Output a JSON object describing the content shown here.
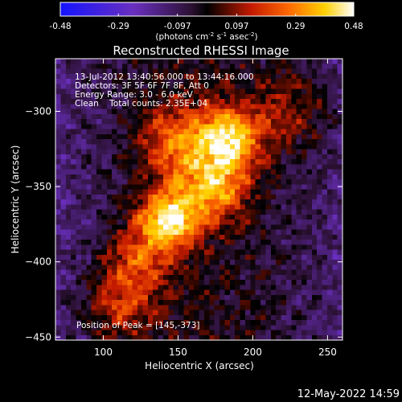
{
  "colorbar": {
    "tick_labels": [
      "-0.48",
      "-0.29",
      "-0.097",
      "0.097",
      "0.29",
      "0.48"
    ],
    "ticks": [
      -0.48,
      -0.29,
      -0.097,
      0.097,
      0.29,
      0.48
    ],
    "range": [
      -0.48,
      0.48
    ],
    "unit_prefix": "(photons cm",
    "unit_exp1": "-2",
    "unit_mid": " s",
    "unit_exp2": "-1",
    "unit_mid2": " asec",
    "unit_exp3": "-2",
    "unit_suffix": ")"
  },
  "chart_data": {
    "type": "heatmap",
    "title": "Reconstructed RHESSI Image",
    "xlabel": "Heliocentric X (arcsec)",
    "ylabel": "Heliocentric Y (arcsec)",
    "xlim": [
      68,
      260
    ],
    "ylim": [
      -452,
      -265
    ],
    "x_ticks": [
      100,
      150,
      200,
      250
    ],
    "y_ticks": [
      -300,
      -350,
      -400,
      -450
    ],
    "x_tick_labels": [
      "100",
      "150",
      "200",
      "250"
    ],
    "y_tick_labels": [
      "−300",
      "−350",
      "−400",
      "−450"
    ],
    "colorscale": "red-temperature (blue-purple negative, black-red-yellow-white positive)",
    "value_range": [
      -0.48,
      0.48
    ],
    "peak_position": [
      145,
      -373
    ],
    "annotations": {
      "time": "13-Jul-2012 13:40:56.000 to 13:44:16.000",
      "detectors": "Detectors: 3F 5F 6F 7F 8F, Att 0",
      "energy": "Energy Range: 3.0 - 6.0 keV",
      "clean": "Clean    Total counts: 2.35E+04",
      "peak": "Position of Peak = [145,-373]"
    },
    "sources": [
      {
        "x": 143,
        "y": -372,
        "peak": 0.48
      },
      {
        "x": 175,
        "y": -350,
        "peak": 0.34
      },
      {
        "x": 185,
        "y": -318,
        "peak": 0.4
      },
      {
        "x": 150,
        "y": -320,
        "peak": 0.27
      },
      {
        "x": 122,
        "y": -400,
        "peak": 0.22
      },
      {
        "x": 110,
        "y": -430,
        "peak": 0.22
      },
      {
        "x": 225,
        "y": -300,
        "peak": 0.16
      }
    ]
  },
  "footer": {
    "timestamp": "12-May-2022 14:59"
  }
}
